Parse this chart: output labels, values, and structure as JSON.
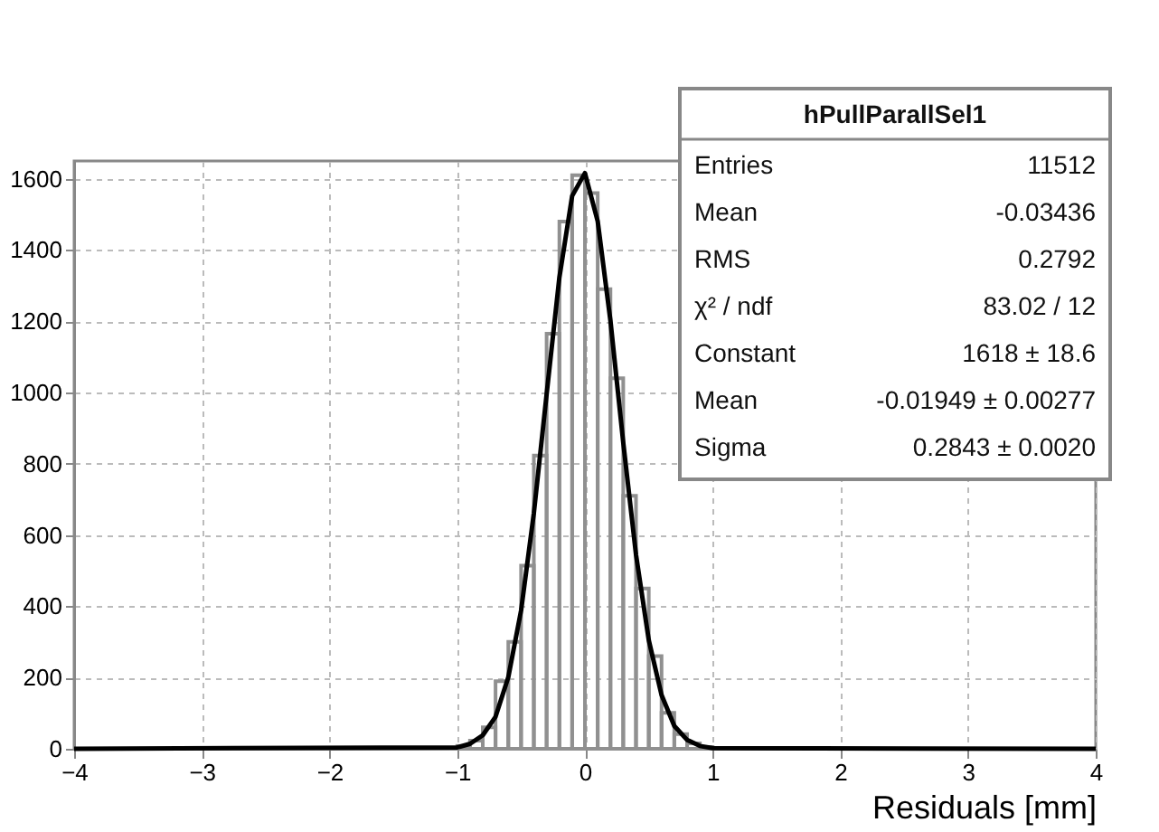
{
  "chart_data": {
    "type": "histogram",
    "xlabel": "Residuals [mm]",
    "bins": [
      -1.0,
      -0.9,
      -0.8,
      -0.7,
      -0.6,
      -0.5,
      -0.4,
      -0.3,
      -0.2,
      -0.1,
      0.0,
      0.1,
      0.2,
      0.3,
      0.4,
      0.5,
      0.6,
      0.7,
      0.8,
      0.9,
      1.0
    ],
    "values": [
      8,
      23,
      60,
      190,
      300,
      514,
      823,
      1165,
      1480,
      1610,
      1560,
      1290,
      1040,
      710,
      450,
      260,
      101,
      41,
      15,
      5
    ],
    "color": "#909090",
    "series": [
      {
        "type": "line",
        "color": "#000000",
        "x": [
          -4.0,
          -1.0,
          -0.9,
          -0.8,
          -0.7,
          -0.6,
          -0.5,
          -0.4,
          -0.3,
          -0.2,
          -0.1,
          0.0,
          0.1,
          0.2,
          0.3,
          0.4,
          0.5,
          0.6,
          0.7,
          0.8,
          0.9,
          1.0,
          4.0
        ],
        "values": [
          0,
          4,
          14,
          38,
          90,
          201,
          388,
          661,
          995,
          1323,
          1552,
          1616,
          1481,
          1201,
          860,
          545,
          305,
          151,
          64,
          25,
          8,
          2,
          0
        ]
      }
    ],
    "xlim": [
      -4,
      4
    ],
    "xticks": [
      -4,
      -3,
      -2,
      -1,
      0,
      1,
      2,
      3,
      4
    ],
    "ylim": [
      0,
      1650
    ],
    "yticks": [
      0,
      200,
      400,
      600,
      800,
      1000,
      1200,
      1400,
      1600
    ],
    "grid": true,
    "annotations": [
      "hPullParallSel1",
      "Entries",
      "11512",
      "Mean",
      "-0.03436",
      "RMS",
      "0.2792",
      "χ² / ndf",
      "83.02 / 12",
      "Constant",
      "1618 ± 18.6",
      "Mean",
      "-0.01949 ± 0.00277",
      "Sigma",
      "0.2843 ± 0.0020"
    ]
  }
}
